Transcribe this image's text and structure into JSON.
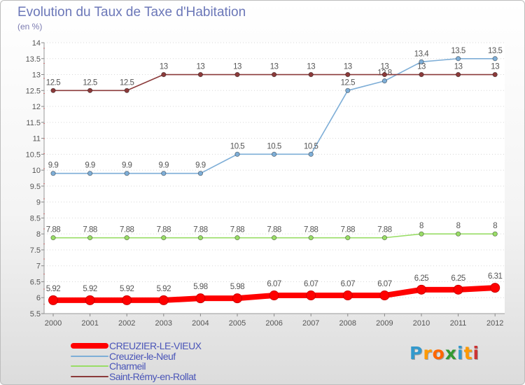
{
  "title": "Evolution du Taux de Taxe d'Habitation",
  "unit": "(en %)",
  "brand": {
    "text": "Proxiti",
    "colors": [
      "#3399cc",
      "#ff9900",
      "#ff6600",
      "#339933",
      "#3399cc",
      "#ff9900",
      "#cc3333"
    ]
  },
  "chart_data": {
    "type": "line",
    "title": "Evolution du Taux de Taxe d'Habitation",
    "ylabel": "(en %)",
    "xlabel": "",
    "x": [
      "2000",
      "2001",
      "2002",
      "2003",
      "2004",
      "2005",
      "2006",
      "2007",
      "2008",
      "2009",
      "2010",
      "2011",
      "2012"
    ],
    "ylim": [
      5.5,
      14
    ],
    "yticks": [
      "5.5",
      "6",
      "6.5",
      "7",
      "7.5",
      "8",
      "8.5",
      "9",
      "9.5",
      "10",
      "10.5",
      "11",
      "11.5",
      "12",
      "12.5",
      "13",
      "13.5",
      "14"
    ],
    "grid": "horizontal dotted",
    "legend": "bottom-left",
    "series": [
      {
        "name": "CREUZIER-LE-VIEUX",
        "color": "#ff0000",
        "bold": true,
        "values": [
          5.92,
          5.92,
          5.92,
          5.92,
          5.98,
          5.98,
          6.07,
          6.07,
          6.07,
          6.07,
          6.25,
          6.25,
          6.31
        ],
        "labels": [
          "5.92",
          "5.92",
          "5.92",
          "5.92",
          "5.98",
          "5.98",
          "6.07",
          "6.07",
          "6.07",
          "6.07",
          "6.25",
          "6.25",
          "6.31"
        ]
      },
      {
        "name": "Creuzier-le-Neuf",
        "color": "#7eaed7",
        "values": [
          9.9,
          9.9,
          9.9,
          9.9,
          9.9,
          10.5,
          10.5,
          10.5,
          12.5,
          12.8,
          13.4,
          13.5,
          13.5
        ],
        "labels": [
          "9.9",
          "9.9",
          "9.9",
          "9.9",
          "9.9",
          "10.5",
          "10.5",
          "10.5",
          "12.5",
          "12.8",
          "13.4",
          "13.5",
          "13.5"
        ]
      },
      {
        "name": "Charmeil",
        "color": "#99dd66",
        "values": [
          7.88,
          7.88,
          7.88,
          7.88,
          7.88,
          7.88,
          7.88,
          7.88,
          7.88,
          7.88,
          8,
          8,
          8
        ],
        "labels": [
          "7.88",
          "7.88",
          "7.88",
          "7.88",
          "7.88",
          "7.88",
          "7.88",
          "7.88",
          "7.88",
          "7.88",
          "8",
          "8",
          "8"
        ]
      },
      {
        "name": "Saint-Rémy-en-Rollat",
        "color": "#8b3a3a",
        "values": [
          12.5,
          12.5,
          12.5,
          13,
          13,
          13,
          13,
          13,
          13,
          13,
          13,
          13,
          13
        ],
        "labels": [
          "12.5",
          "12.5",
          "12.5",
          "13",
          "13",
          "13",
          "13",
          "13",
          "13",
          "13",
          "13",
          "13",
          "13"
        ]
      }
    ]
  }
}
